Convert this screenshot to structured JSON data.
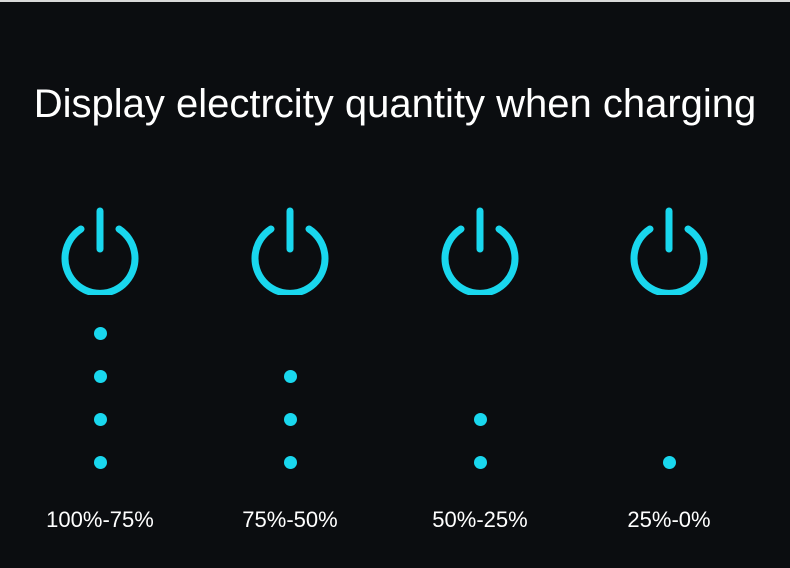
{
  "title": "Display electrcity quantity when charging",
  "accent_color": "#19d7ee",
  "icon": "power-icon",
  "levels": [
    {
      "label": "100%-75%",
      "dots": 4
    },
    {
      "label": "75%-50%",
      "dots": 3
    },
    {
      "label": "50%-25%",
      "dots": 2
    },
    {
      "label": "25%-0%",
      "dots": 1
    }
  ]
}
